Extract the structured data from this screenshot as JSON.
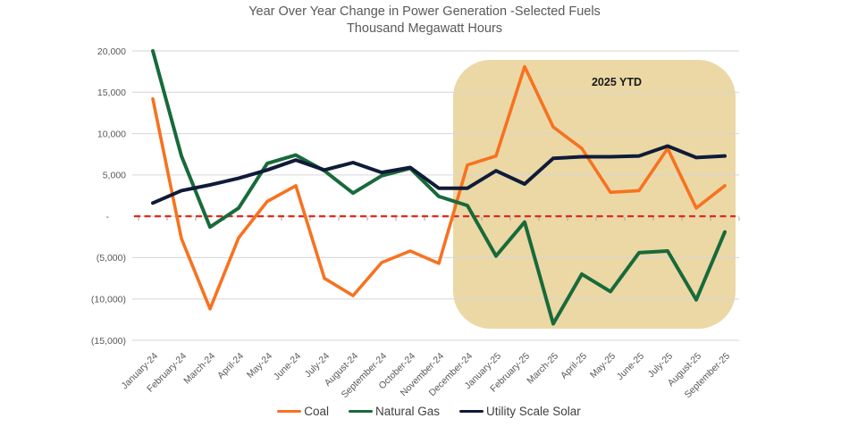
{
  "header": {
    "title": "Year Over Year Change in Power Generation -Selected Fuels",
    "subtitle": "Thousand Megawatt Hours"
  },
  "annotations": {
    "ytd_label": "2025 YTD"
  },
  "chart_data": {
    "type": "line",
    "title": "Year Over Year Change in Power Generation -Selected Fuels",
    "subtitle": "Thousand Megawatt Hours",
    "categories": [
      "January-24",
      "February-24",
      "March-24",
      "April-24",
      "May-24",
      "June-24",
      "July-24",
      "August-24",
      "September-24",
      "October-24",
      "November-24",
      "December-24",
      "January-25",
      "February-25",
      "March-25",
      "April-25",
      "May-25",
      "June-25",
      "July-25",
      "August-25",
      "September-25"
    ],
    "series": [
      {
        "name": "Coal",
        "color": "#F77220",
        "values": [
          14200,
          -2700,
          -11200,
          -2600,
          1800,
          3700,
          -7500,
          -9600,
          -5600,
          -4200,
          -5700,
          6200,
          7300,
          18100,
          10800,
          8200,
          2900,
          3100,
          8200,
          1000,
          3700
        ]
      },
      {
        "name": "Natural Gas",
        "color": "#186A3B",
        "values": [
          20000,
          7300,
          -1300,
          1000,
          6400,
          7400,
          5500,
          2800,
          4900,
          5800,
          2400,
          1300,
          -4800,
          -700,
          -13000,
          -7000,
          -9100,
          -4400,
          -4200,
          -10100,
          -1900
        ]
      },
      {
        "name": "Utility Scale Solar",
        "color": "#0F1B38",
        "values": [
          1600,
          3100,
          3800,
          4600,
          5600,
          6800,
          5600,
          6500,
          5300,
          5900,
          3400,
          3400,
          5500,
          3900,
          7000,
          7200,
          7200,
          7300,
          8500,
          7100,
          7300
        ]
      }
    ],
    "y_ticks": [
      {
        "value": 20000,
        "label": "20,000"
      },
      {
        "value": 15000,
        "label": "15,000"
      },
      {
        "value": 10000,
        "label": "10,000"
      },
      {
        "value": 5000,
        "label": "5,000"
      },
      {
        "value": 0,
        "label": "-"
      },
      {
        "value": -5000,
        "label": "(5,000)"
      },
      {
        "value": -10000,
        "label": "(10,000)"
      },
      {
        "value": -15000,
        "label": "(15,000)"
      }
    ],
    "ylim": [
      -15000,
      20000
    ],
    "grid": true,
    "legend_position": "bottom",
    "zero_line": {
      "style": "dashed",
      "color": "#E02B1C"
    },
    "highlight": {
      "label": "2025 YTD",
      "from_category": "December-24",
      "to_category": "September-25",
      "color": "#EBD8A5"
    },
    "colors": {
      "gridline": "#D6D6D6",
      "tick": "#A6A6A6",
      "axis_text": "#595959"
    }
  }
}
